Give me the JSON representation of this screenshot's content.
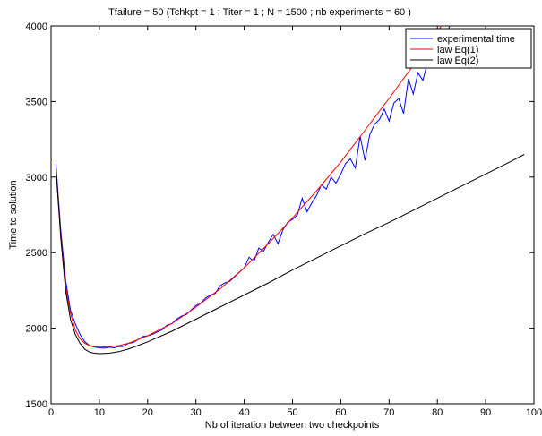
{
  "chart_data": {
    "type": "line",
    "title": "Tfailure = 50 (Tchkpt = 1 ; Titer = 1 ; N = 1500 ; nb experiments = 60 )",
    "xlabel": "Nb of iteration between two checkpoints",
    "ylabel": "Time to solution",
    "xlim": [
      0,
      100
    ],
    "ylim": [
      1500,
      4000
    ],
    "xticks": [
      "0",
      "10",
      "20",
      "30",
      "40",
      "50",
      "60",
      "70",
      "80",
      "90",
      "100"
    ],
    "yticks": [
      "1500",
      "2000",
      "2500",
      "3000",
      "3500",
      "4000"
    ],
    "grid": false,
    "legend_position": "top-right",
    "series": [
      {
        "name": "experimental time",
        "color": "#0000ff",
        "points": [
          [
            1,
            3090
          ],
          [
            2,
            2650
          ],
          [
            3,
            2320
          ],
          [
            4,
            2120
          ],
          [
            5,
            2030
          ],
          [
            6,
            1960
          ],
          [
            7,
            1910
          ],
          [
            8,
            1885
          ],
          [
            9,
            1875
          ],
          [
            10,
            1870
          ],
          [
            11,
            1868
          ],
          [
            12,
            1875
          ],
          [
            13,
            1870
          ],
          [
            14,
            1878
          ],
          [
            15,
            1880
          ],
          [
            16,
            1900
          ],
          [
            17,
            1905
          ],
          [
            18,
            1925
          ],
          [
            19,
            1945
          ],
          [
            20,
            1950
          ],
          [
            21,
            1960
          ],
          [
            22,
            1975
          ],
          [
            23,
            1990
          ],
          [
            24,
            2020
          ],
          [
            25,
            2030
          ],
          [
            26,
            2060
          ],
          [
            27,
            2080
          ],
          [
            28,
            2090
          ],
          [
            29,
            2120
          ],
          [
            30,
            2150
          ],
          [
            31,
            2165
          ],
          [
            32,
            2200
          ],
          [
            33,
            2220
          ],
          [
            34,
            2230
          ],
          [
            35,
            2280
          ],
          [
            36,
            2300
          ],
          [
            37,
            2310
          ],
          [
            38,
            2340
          ],
          [
            39,
            2370
          ],
          [
            40,
            2400
          ],
          [
            41,
            2470
          ],
          [
            42,
            2440
          ],
          [
            43,
            2530
          ],
          [
            44,
            2510
          ],
          [
            45,
            2570
          ],
          [
            46,
            2620
          ],
          [
            47,
            2560
          ],
          [
            48,
            2650
          ],
          [
            49,
            2700
          ],
          [
            50,
            2720
          ],
          [
            51,
            2750
          ],
          [
            52,
            2860
          ],
          [
            53,
            2770
          ],
          [
            54,
            2830
          ],
          [
            55,
            2880
          ],
          [
            56,
            2950
          ],
          [
            57,
            2920
          ],
          [
            58,
            3000
          ],
          [
            59,
            2960
          ],
          [
            60,
            3020
          ],
          [
            61,
            3090
          ],
          [
            62,
            3120
          ],
          [
            63,
            3060
          ],
          [
            64,
            3270
          ],
          [
            65,
            3110
          ],
          [
            66,
            3280
          ],
          [
            67,
            3350
          ],
          [
            68,
            3380
          ],
          [
            69,
            3450
          ],
          [
            70,
            3370
          ],
          [
            71,
            3490
          ],
          [
            72,
            3520
          ],
          [
            73,
            3420
          ],
          [
            74,
            3650
          ],
          [
            75,
            3550
          ],
          [
            76,
            3690
          ],
          [
            77,
            3640
          ],
          [
            78,
            3760
          ],
          [
            79,
            3830
          ],
          [
            80,
            3880
          ],
          [
            81,
            3940
          ],
          [
            82,
            3960
          ],
          [
            83,
            4030
          ],
          [
            84,
            4060
          ]
        ]
      },
      {
        "name": "law Eq(1)",
        "color": "#ff0000",
        "points": [
          [
            1,
            3060
          ],
          [
            2,
            2620
          ],
          [
            3,
            2280
          ],
          [
            4,
            2100
          ],
          [
            5,
            1990
          ],
          [
            6,
            1930
          ],
          [
            7,
            1900
          ],
          [
            8,
            1885
          ],
          [
            9,
            1878
          ],
          [
            10,
            1875
          ],
          [
            12,
            1878
          ],
          [
            14,
            1885
          ],
          [
            16,
            1900
          ],
          [
            18,
            1925
          ],
          [
            20,
            1950
          ],
          [
            25,
            2030
          ],
          [
            30,
            2140
          ],
          [
            35,
            2260
          ],
          [
            40,
            2400
          ],
          [
            45,
            2560
          ],
          [
            50,
            2730
          ],
          [
            55,
            2910
          ],
          [
            60,
            3100
          ],
          [
            65,
            3310
          ],
          [
            70,
            3520
          ],
          [
            75,
            3740
          ],
          [
            80,
            3960
          ],
          [
            82,
            4060
          ]
        ]
      },
      {
        "name": "law Eq(2)",
        "color": "#000000",
        "points": [
          [
            1,
            3060
          ],
          [
            2,
            2600
          ],
          [
            3,
            2250
          ],
          [
            4,
            2060
          ],
          [
            5,
            1960
          ],
          [
            6,
            1900
          ],
          [
            7,
            1860
          ],
          [
            8,
            1842
          ],
          [
            9,
            1835
          ],
          [
            10,
            1832
          ],
          [
            12,
            1835
          ],
          [
            14,
            1845
          ],
          [
            16,
            1862
          ],
          [
            18,
            1885
          ],
          [
            20,
            1910
          ],
          [
            25,
            1980
          ],
          [
            30,
            2060
          ],
          [
            35,
            2140
          ],
          [
            40,
            2220
          ],
          [
            45,
            2300
          ],
          [
            50,
            2385
          ],
          [
            55,
            2465
          ],
          [
            60,
            2545
          ],
          [
            65,
            2625
          ],
          [
            70,
            2700
          ],
          [
            75,
            2780
          ],
          [
            80,
            2860
          ],
          [
            85,
            2940
          ],
          [
            90,
            3020
          ],
          [
            95,
            3100
          ],
          [
            98,
            3150
          ]
        ]
      }
    ]
  }
}
